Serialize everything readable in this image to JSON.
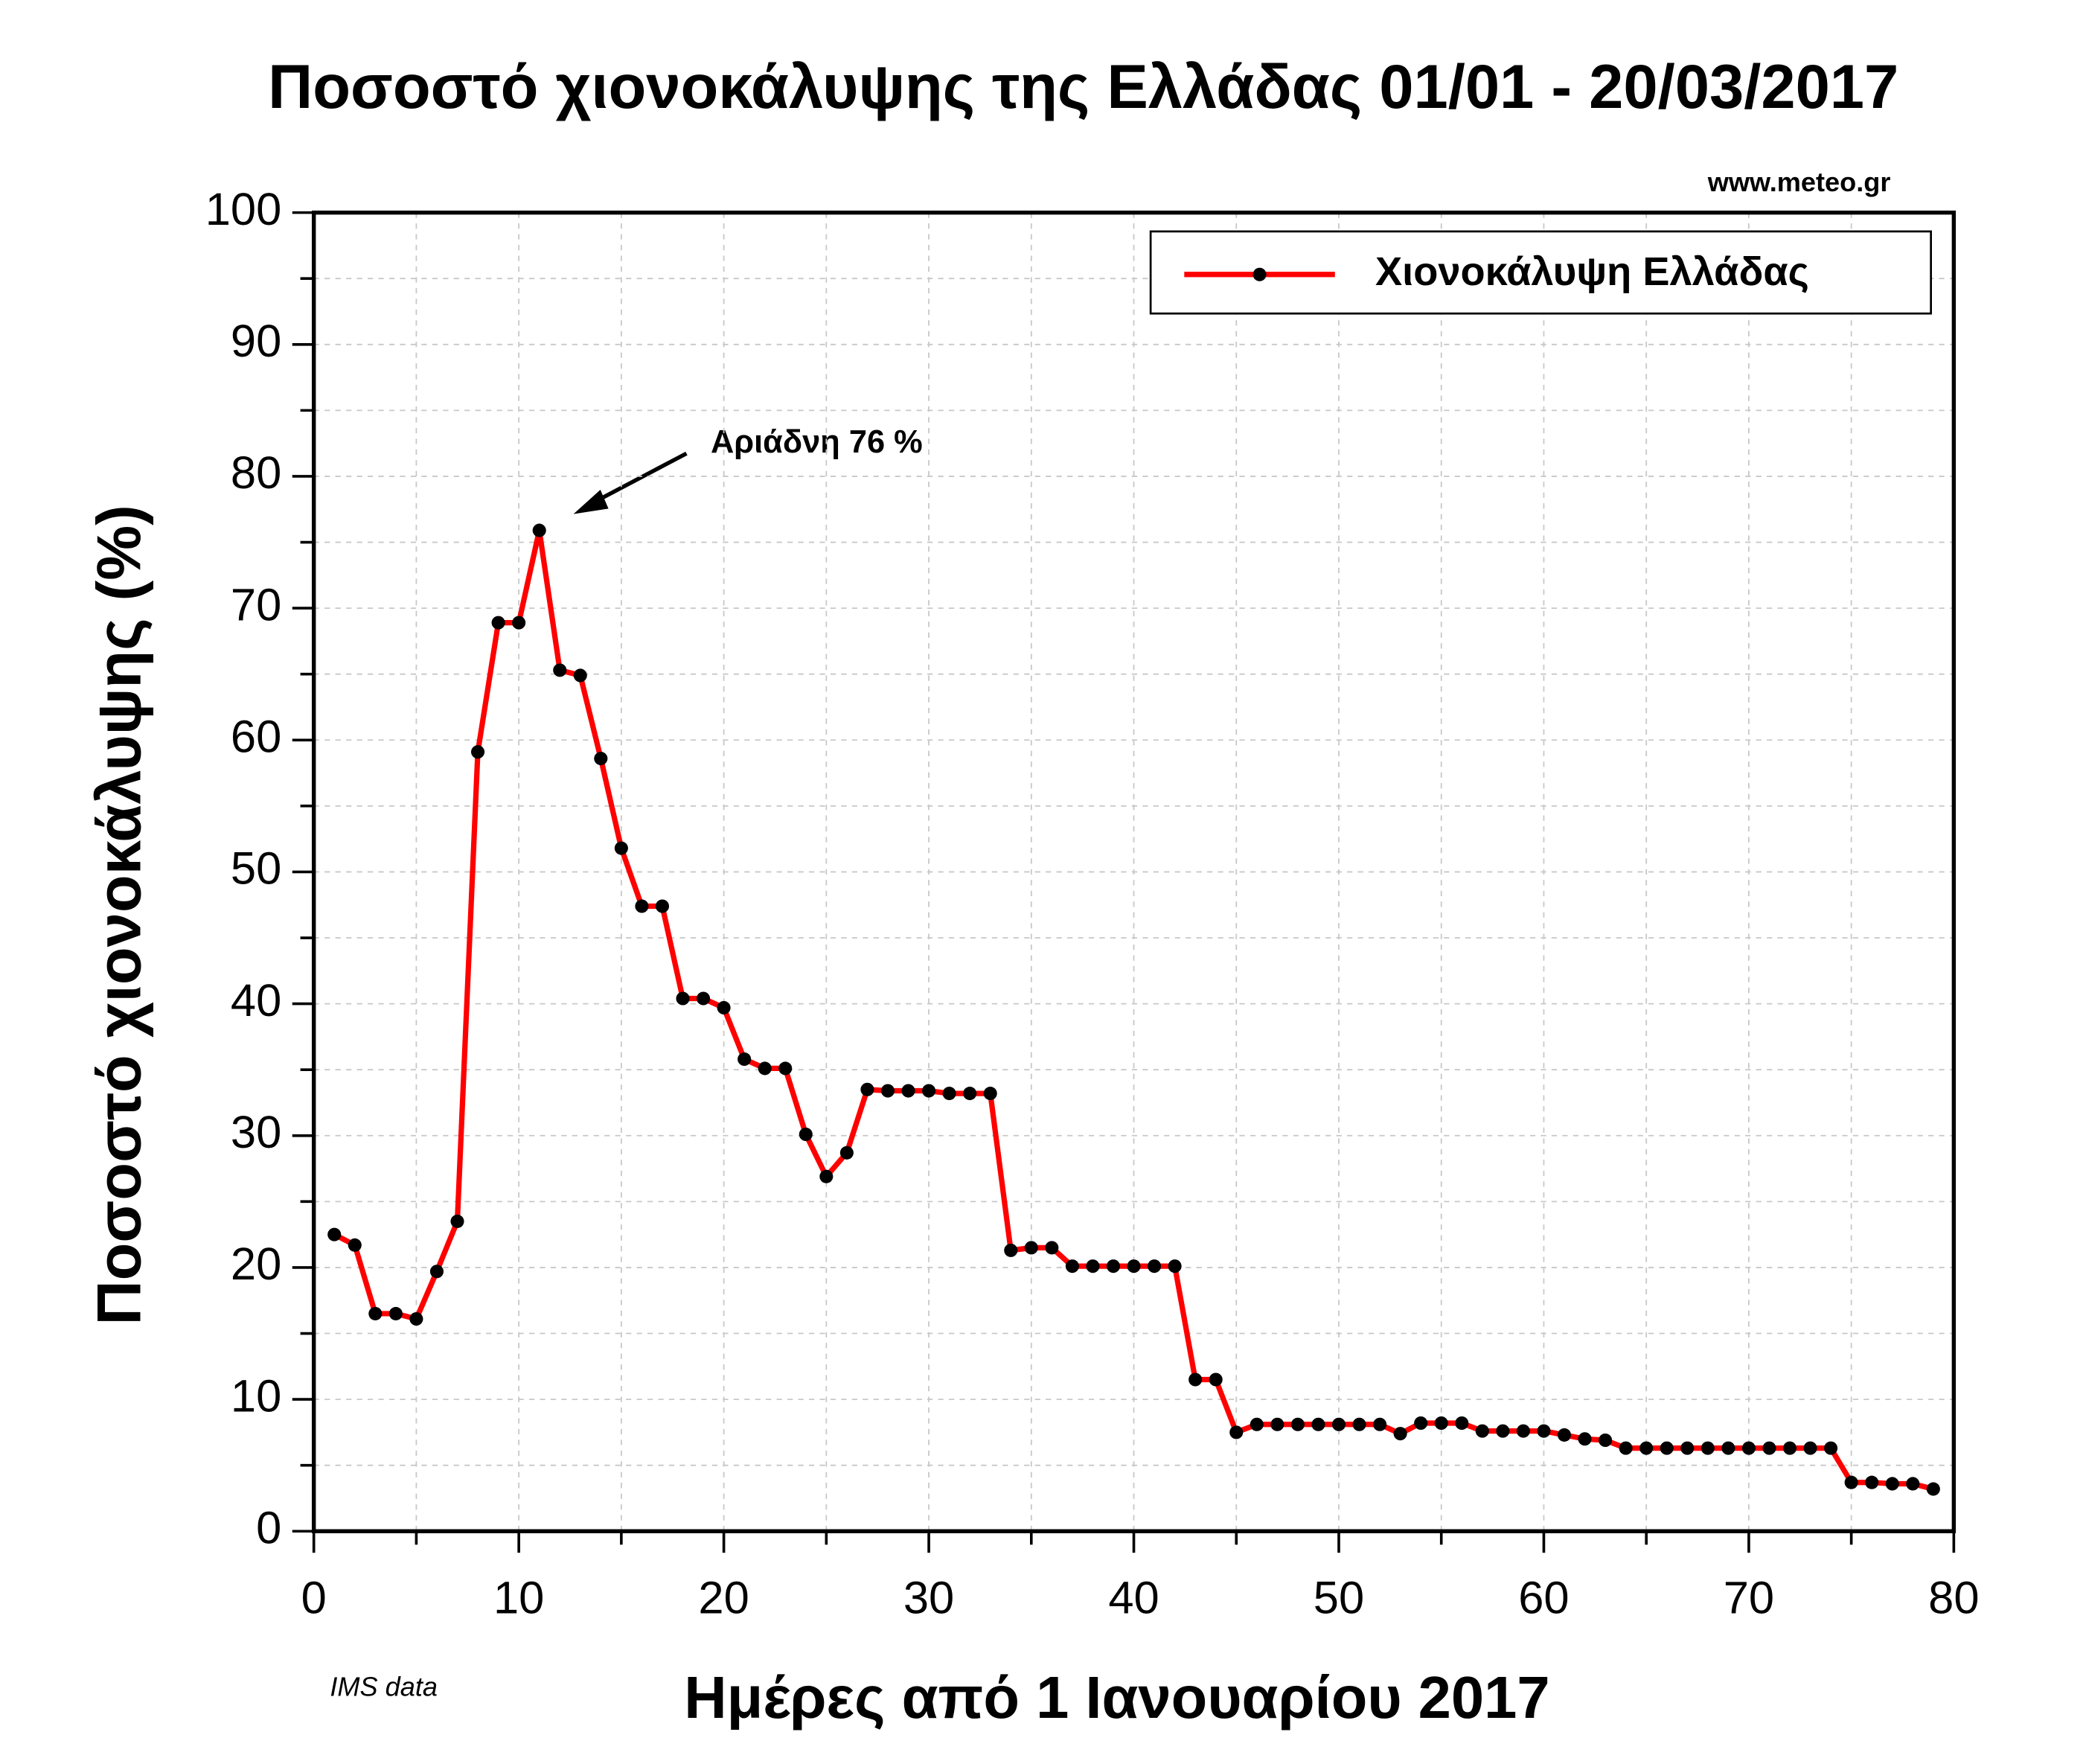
{
  "chart_data": {
    "type": "line",
    "title": "Ποσοστό χιονοκάλυψης της Ελλάδας 01/01 - 20/03/2017",
    "source": "www.meteo.gr",
    "note": "IMS data",
    "annotation": "Αριάδνη 76 %",
    "xlabel": "Ημέρες από 1 Ιανουαρίου 2017",
    "ylabel": "Ποσοστό χιονοκάλυψης (%)",
    "xlim": [
      0,
      80
    ],
    "xticks": [
      0,
      10,
      20,
      30,
      40,
      50,
      60,
      70,
      80
    ],
    "ylim": [
      0,
      100
    ],
    "yticks": [
      0,
      10,
      20,
      30,
      40,
      50,
      60,
      70,
      80,
      90,
      100
    ],
    "grid": true,
    "legend": "top-right",
    "x": [
      1,
      2,
      3,
      4,
      5,
      6,
      7,
      8,
      9,
      10,
      11,
      12,
      13,
      14,
      15,
      16,
      17,
      18,
      19,
      20,
      21,
      22,
      23,
      24,
      25,
      26,
      27,
      28,
      29,
      30,
      31,
      32,
      33,
      34,
      35,
      36,
      37,
      38,
      39,
      40,
      41,
      42,
      43,
      44,
      45,
      46,
      47,
      48,
      49,
      50,
      51,
      52,
      53,
      54,
      55,
      56,
      57,
      58,
      59,
      60,
      61,
      62,
      63,
      64,
      65,
      66,
      67,
      68,
      69,
      70,
      71,
      72,
      73,
      74,
      75,
      76,
      77,
      78,
      79
    ],
    "series": [
      {
        "name": "Χιονοκάλυψη Ελλάδας",
        "color": "#ff0000",
        "marker_color": "#000000",
        "values": [
          22.5,
          21.7,
          16.5,
          16.5,
          16.1,
          19.7,
          23.5,
          59.1,
          68.9,
          68.9,
          75.9,
          65.3,
          64.9,
          58.6,
          51.8,
          47.4,
          47.4,
          40.4,
          40.4,
          39.7,
          35.8,
          35.1,
          35.1,
          30.1,
          26.9,
          28.7,
          33.5,
          33.4,
          33.4,
          33.4,
          33.2,
          33.2,
          33.2,
          21.3,
          21.5,
          21.5,
          20.1,
          20.1,
          20.1,
          20.1,
          20.1,
          20.1,
          11.5,
          11.5,
          7.5,
          8.1,
          8.1,
          8.1,
          8.1,
          8.1,
          8.1,
          8.1,
          7.4,
          8.2,
          8.2,
          8.2,
          7.6,
          7.6,
          7.6,
          7.6,
          7.3,
          7.0,
          6.9,
          6.3,
          6.3,
          6.3,
          6.3,
          6.3,
          6.3,
          6.3,
          6.3,
          6.3,
          6.3,
          6.3,
          3.7,
          3.7,
          3.6,
          3.6,
          3.2
        ]
      }
    ]
  }
}
